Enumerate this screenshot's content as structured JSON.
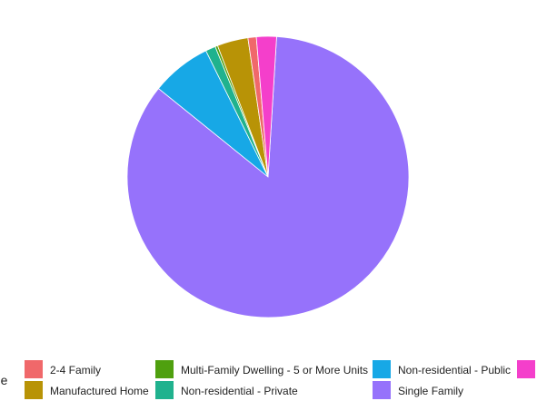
{
  "chart_data": {
    "type": "pie",
    "legend_title": "Type",
    "legend_position": "bottom",
    "slices": [
      {
        "label": "Single Family",
        "value": 88.5,
        "color": "#9672FB"
      },
      {
        "label": "Non-residential - Public",
        "value": 7.2,
        "color": "#17A8E6"
      },
      {
        "label": "Non-residential - Private",
        "value": 1.2,
        "color": "#20B28E"
      },
      {
        "label": "Multi-Family Dwelling - 5 or More Units",
        "value": 0.3,
        "color": "#4FA00F"
      },
      {
        "label": "Manufactured Home",
        "value": 3.7,
        "color": "#B89306"
      },
      {
        "label": "2-4 Family",
        "value": 1.0,
        "color": "#F0686A"
      },
      {
        "label": "",
        "value": 2.4,
        "color": "#F43FCB"
      }
    ],
    "legend": [
      {
        "label": "2-4 Family",
        "color": "#F0686A"
      },
      {
        "label": "Manufactured Home",
        "color": "#B89306"
      },
      {
        "label": "Multi-Family Dwelling - 5 or More Units",
        "color": "#4FA00F"
      },
      {
        "label": "Non-residential - Private",
        "color": "#20B28E"
      },
      {
        "label": "Non-residential - Public",
        "color": "#17A8E6"
      },
      {
        "label": "Single Family",
        "color": "#9672FB"
      },
      {
        "label": "",
        "color": "#F43FCB"
      }
    ]
  }
}
